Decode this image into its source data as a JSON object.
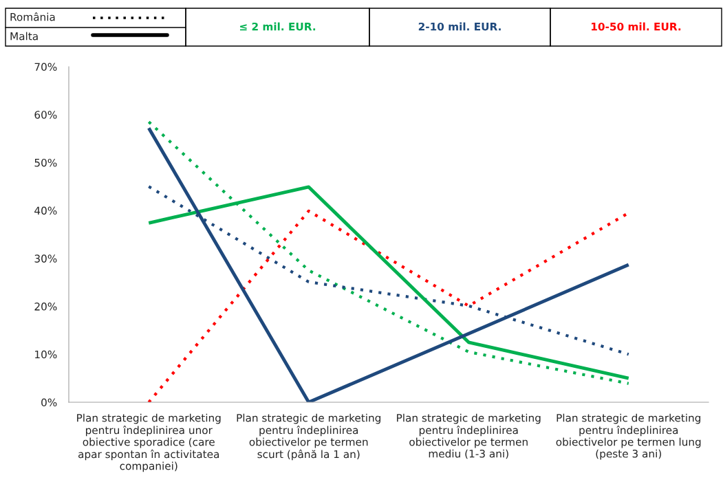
{
  "chart_data": {
    "type": "line",
    "categories": [
      "Plan strategic de marketing pentru îndeplinirea unor obiective sporadice (care apar spontan în activitatea companiei)",
      "Plan strategic de marketing pentru îndeplinirea obiectivelor pe termen scurt (până la 1 an)",
      "Plan strategic de marketing pentru îndeplinirea obiectivelor pe termen mediu (1-3 ani)",
      "Plan strategic de marketing pentru îndeplinirea obiectivelor pe termen lung (peste 3 ani)"
    ],
    "series": [
      {
        "color": "#00b050",
        "line_style": "dotted",
        "values": [
          58.5,
          27.5,
          10.5,
          3.9
        ]
      },
      {
        "color": "#1f497d",
        "line_style": "dotted",
        "values": [
          45,
          25.1,
          20.1,
          10
        ]
      },
      {
        "color": "#ff0000",
        "line_style": "dotted",
        "values": [
          0,
          39.9,
          20.1,
          39.5
        ]
      },
      {
        "color": "#00b050",
        "line_style": "solid",
        "values": [
          37.4,
          44.9,
          12.5,
          5
        ]
      },
      {
        "color": "#1f497d",
        "line_style": "solid",
        "values": [
          57.2,
          0,
          14.3,
          28.7
        ]
      }
    ],
    "annotations": [
      "România",
      "Malta",
      "≤ 2 mil. EUR.",
      "2-10 mil. EUR.",
      "10-50 mil. EUR."
    ],
    "ylim": [
      0,
      70
    ],
    "yticks": [
      {
        "value": 0,
        "label": "0%"
      },
      {
        "value": 10,
        "label": "10%"
      },
      {
        "value": 20,
        "label": "20%"
      },
      {
        "value": 30,
        "label": "30%"
      },
      {
        "value": 40,
        "label": "40%"
      },
      {
        "value": 50,
        "label": "50%"
      },
      {
        "value": 60,
        "label": "60%"
      },
      {
        "value": 70,
        "label": "70%"
      }
    ],
    "grid": false,
    "legend": false,
    "marker": "none"
  }
}
